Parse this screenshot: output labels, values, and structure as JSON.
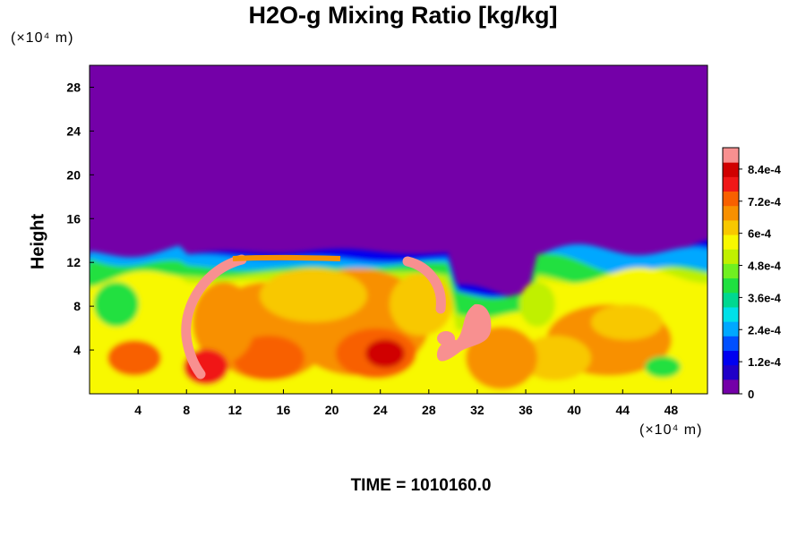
{
  "title": "H2O-g Mixing Ratio [kg/kg]",
  "y_unit": "(×10⁴ m)",
  "x_unit": "(×10⁴ m)",
  "time_label": "TIME = 1010160.0",
  "chart_data": {
    "type": "heatmap",
    "title": "H2O-g Mixing Ratio [kg/kg]",
    "xlabel": "",
    "ylabel": "Height",
    "x_unit": "(×10⁴ m)",
    "y_unit": "(×10⁴ m)",
    "xlim": [
      0,
      51
    ],
    "ylim": [
      0,
      30
    ],
    "x_ticks": [
      4,
      8,
      12,
      16,
      20,
      24,
      28,
      32,
      36,
      40,
      44,
      48
    ],
    "x_tick_labels": [
      "4",
      "8",
      "12",
      "16",
      "20",
      "24",
      "28",
      "32",
      "36",
      "40",
      "44",
      "48"
    ],
    "y_ticks": [
      4,
      8,
      12,
      16,
      20,
      24,
      28
    ],
    "y_tick_labels": [
      "4",
      "8",
      "12",
      "16",
      "20",
      "24",
      "28"
    ],
    "colorbar": {
      "min": 0,
      "max": 0.00092,
      "ticks": [
        0,
        0.00012,
        0.00024,
        0.00036,
        0.00048,
        0.0006,
        0.00072,
        0.00084
      ],
      "tick_labels": [
        "0",
        "1.2e-4",
        "2.4e-4",
        "3.6e-4",
        "4.8e-4",
        "6e-4",
        "7.2e-4",
        "8.4e-4"
      ],
      "colors": [
        "#7400a8",
        "#2000c8",
        "#0000f0",
        "#0050ff",
        "#00a8ff",
        "#00e0e8",
        "#00d890",
        "#20e040",
        "#70f020",
        "#c0f000",
        "#f8f800",
        "#f8c800",
        "#f89000",
        "#f86000",
        "#f01818",
        "#d00000",
        "#f89090"
      ]
    },
    "field_features": {
      "background_value": 0,
      "moist_layer_top": 13,
      "dry_layer_color": "#7400a8"
    }
  }
}
